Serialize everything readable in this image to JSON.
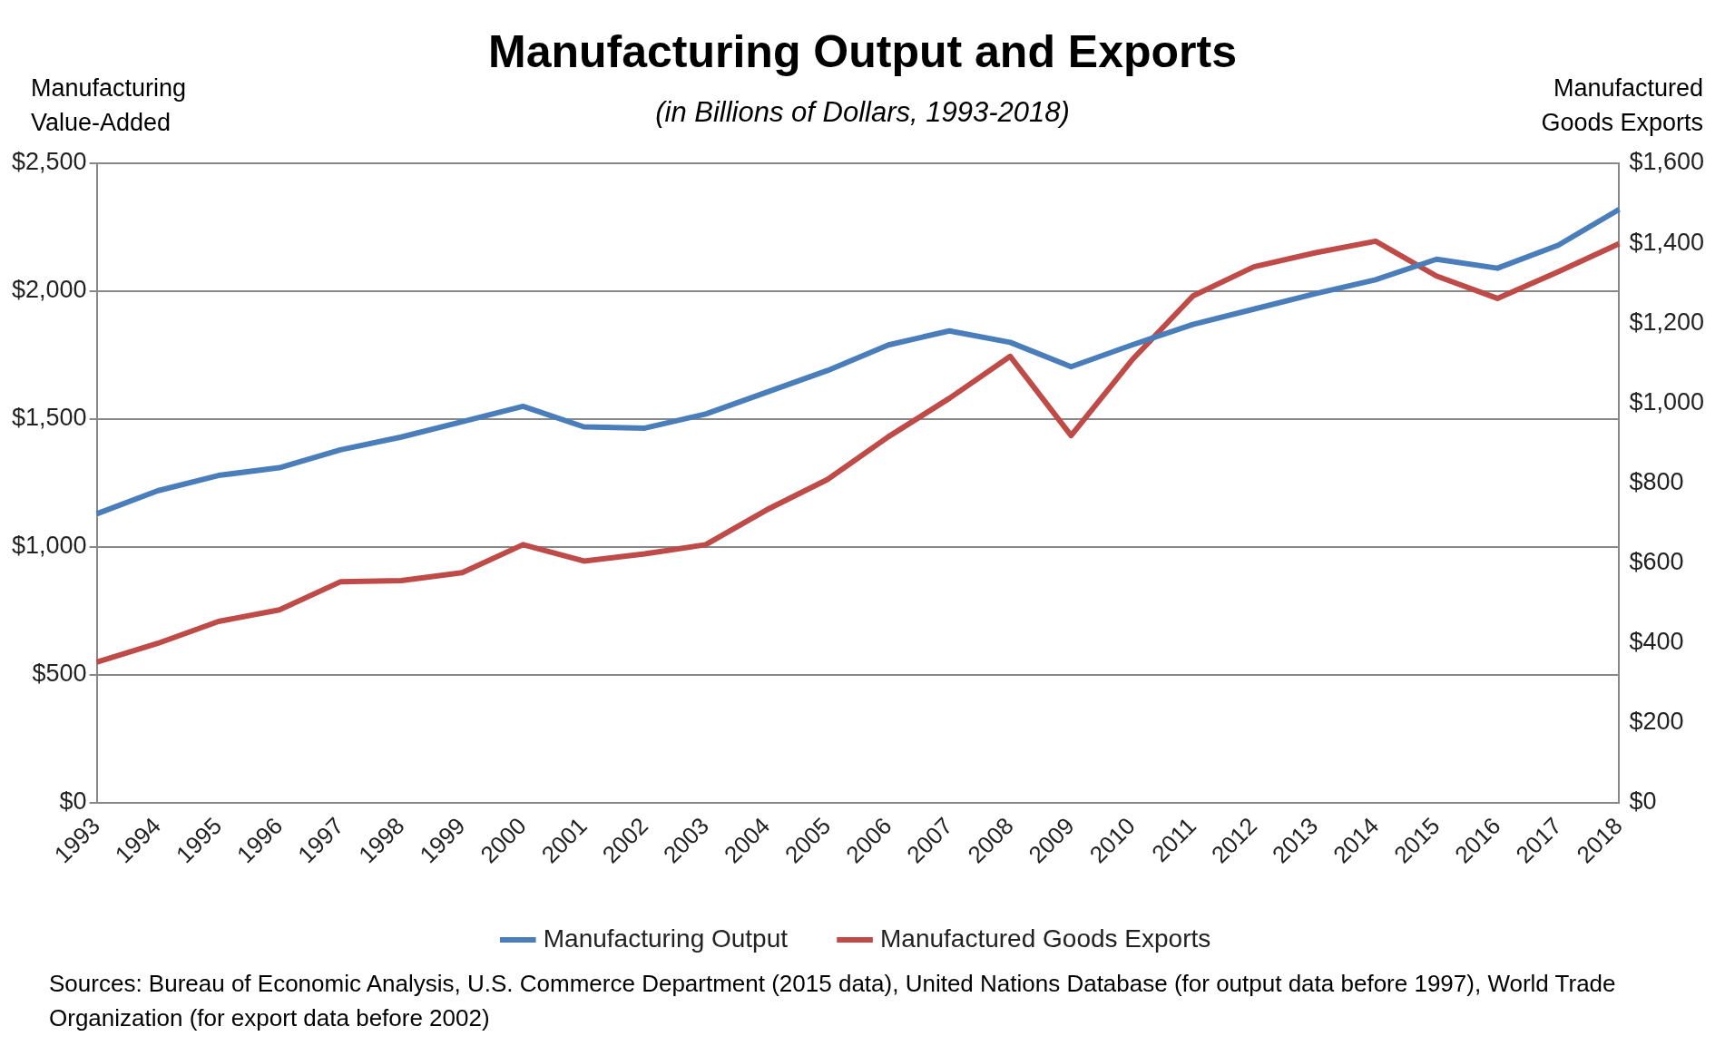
{
  "chart_data": {
    "type": "line",
    "title": "Manufacturing Output and Exports",
    "subtitle": "(in Billions of Dollars, 1993-2018)",
    "ylabel": "Manufacturing Value-Added",
    "y2label": "Manufactured Goods Exports",
    "categories": [
      "1993",
      "1994",
      "1995",
      "1996",
      "1997",
      "1998",
      "1999",
      "2000",
      "2001",
      "2002",
      "2003",
      "2004",
      "2005",
      "2006",
      "2007",
      "2008",
      "2009",
      "2010",
      "2011",
      "2012",
      "2013",
      "2014",
      "2015",
      "2016",
      "2017",
      "2018"
    ],
    "series": [
      {
        "name": "Manufacturing Output",
        "color": "#4a7ebb",
        "values": [
          1130,
          1220,
          1280,
          1310,
          1380,
          1430,
          1490,
          1550,
          1470,
          1465,
          1520,
          1605,
          1690,
          1790,
          1845,
          1800,
          1705,
          1790,
          1870,
          1930,
          1990,
          2045,
          2125,
          2090,
          2180,
          2320
        ]
      },
      {
        "name": "Manufactured Goods Exports",
        "color": "#be4b48",
        "axis": "y2",
        "values": [
          352,
          399,
          454,
          483,
          553,
          556,
          576,
          646,
          605,
          623,
          646,
          733,
          809,
          916,
          1012,
          1117,
          919,
          1108,
          1268,
          1341,
          1376,
          1405,
          1318,
          1262,
          1329,
          1399
        ]
      }
    ],
    "ylim": [
      0,
      2500
    ],
    "yticks": [
      {
        "value": 0,
        "label": "$0"
      },
      {
        "value": 500,
        "label": "$500"
      },
      {
        "value": 1000,
        "label": "$1,000"
      },
      {
        "value": 1500,
        "label": "$1,500"
      },
      {
        "value": 2000,
        "label": "$2,000"
      },
      {
        "value": 2500,
        "label": "$2,500"
      }
    ],
    "y2lim": [
      0,
      1600
    ],
    "y2ticks": [
      {
        "value": 0,
        "label": "$0"
      },
      {
        "value": 200,
        "label": "$200"
      },
      {
        "value": 400,
        "label": "$400"
      },
      {
        "value": 600,
        "label": "$600"
      },
      {
        "value": 800,
        "label": "$800"
      },
      {
        "value": 1000,
        "label": "$1,000"
      },
      {
        "value": 1200,
        "label": "$1,200"
      },
      {
        "value": 1400,
        "label": "$1,400"
      },
      {
        "value": 1600,
        "label": "$1,600"
      }
    ],
    "grid": "y",
    "legend": "bottom",
    "marker": "none",
    "line_style": "solid",
    "annotations": [
      "Sources: Bureau of Economic Analysis, U.S. Commerce Department (2015 data), United Nations Database (for output data before 1997), World Trade Organization (for export data before 2002)"
    ]
  }
}
